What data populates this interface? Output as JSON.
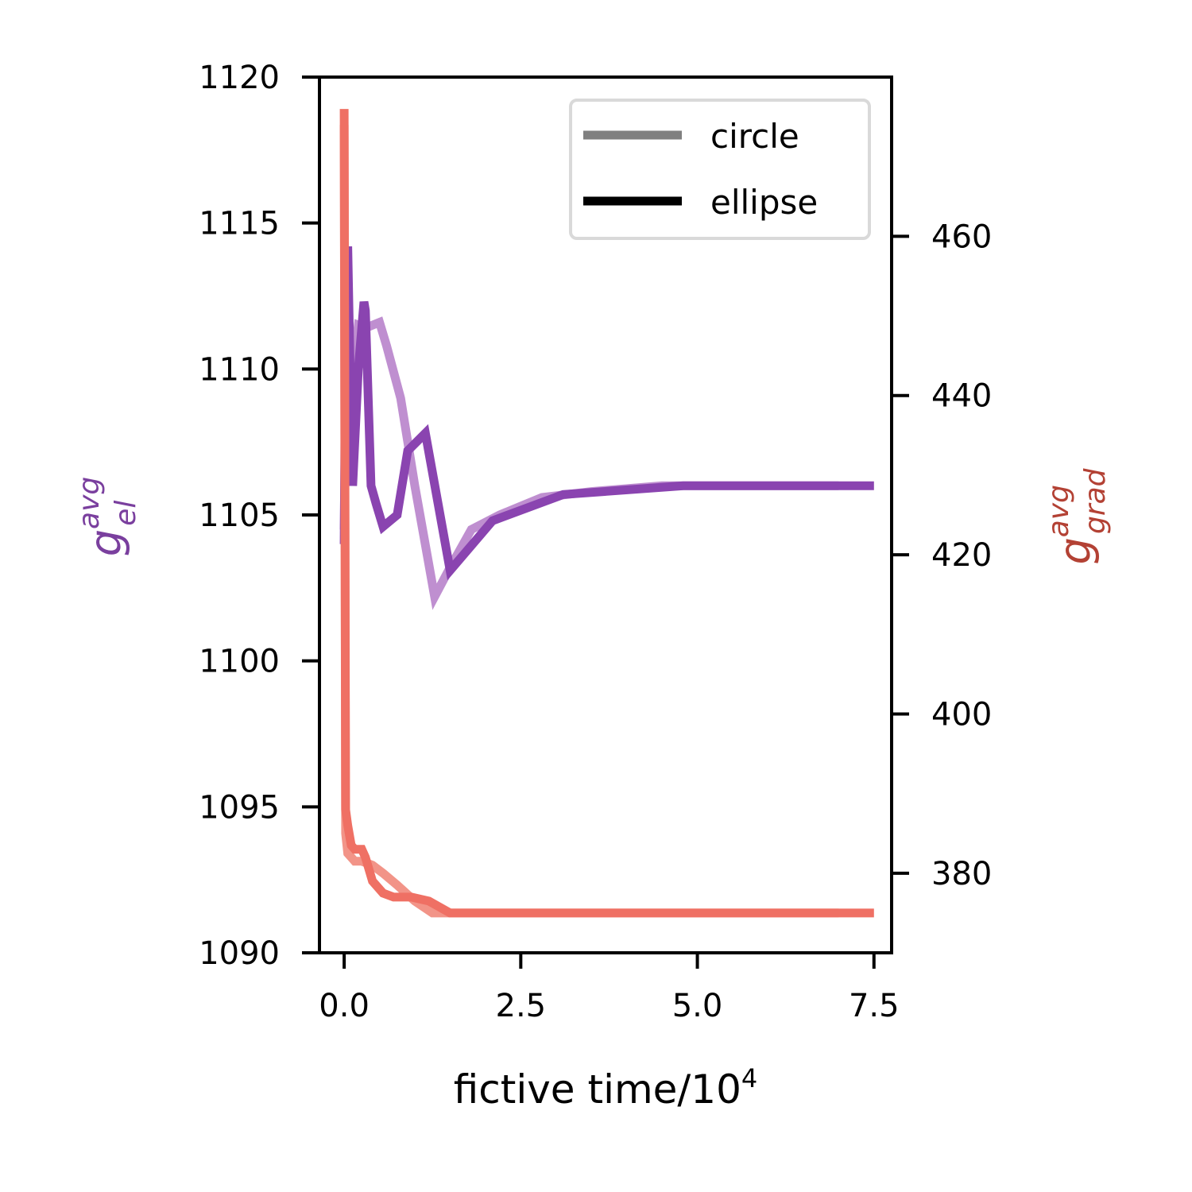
{
  "chart_data": {
    "type": "line",
    "xlabel": {
      "base": "fictive time/10",
      "exponent": "4"
    },
    "ylabel_left": {
      "main": "g",
      "sup": "avg",
      "sub": "el",
      "color": "#7a3f9e"
    },
    "ylabel_right": {
      "main": "g",
      "sup": "avg",
      "sub": "grad",
      "color": "#b34134"
    },
    "x_ticks": [
      "0.0",
      "2.5",
      "5.0",
      "7.5"
    ],
    "x_tick_values": [
      0,
      2.5,
      5.0,
      7.5
    ],
    "y_left_ticks": [
      "1090",
      "1095",
      "1100",
      "1105",
      "1110",
      "1115",
      "1120"
    ],
    "y_left_tick_values": [
      1090,
      1095,
      1100,
      1105,
      1110,
      1115,
      1120
    ],
    "y_right_ticks": [
      "380",
      "400",
      "420",
      "440",
      "460"
    ],
    "y_right_tick_values": [
      380,
      400,
      420,
      440,
      460
    ],
    "xlim": [
      -0.35,
      7.75
    ],
    "ylim_left": [
      1090,
      1120
    ],
    "ylim_right": [
      370,
      480
    ],
    "colors": {
      "el": "#8a44b0",
      "el_circle": "#bf8fd0",
      "grad": "#ef7064",
      "grad_circle": "#f29488",
      "legend_circle": "#808080",
      "legend_ellipse": "#000000"
    },
    "legend": {
      "position": "top-right",
      "entries": [
        "circle",
        "ellipse"
      ]
    },
    "series": [
      {
        "name": "g_el circle",
        "axis": "left",
        "style": "circle",
        "x": [
          0,
          0.02,
          0.05,
          0.08,
          0.1,
          0.15,
          0.2,
          0.3,
          0.4,
          0.5,
          0.6,
          0.8,
          1.0,
          1.28,
          1.5,
          1.8,
          2.2,
          2.8,
          3.5,
          4.5,
          5.5,
          7.0
        ],
        "y": [
          1104.5,
          1109.0,
          1112.8,
          1108.5,
          1106.5,
          1110.5,
          1111.5,
          1111.4,
          1111.5,
          1111.6,
          1110.8,
          1109.0,
          1106.0,
          1102.2,
          1103.2,
          1104.5,
          1105.0,
          1105.6,
          1105.8,
          1106.0,
          1106.0,
          1106.0
        ]
      },
      {
        "name": "g_el ellipse",
        "axis": "left",
        "style": "ellipse",
        "x": [
          0,
          0.02,
          0.05,
          0.08,
          0.12,
          0.2,
          0.28,
          0.3,
          0.38,
          0.45,
          0.55,
          0.75,
          0.9,
          1.15,
          1.5,
          2.1,
          3.1,
          4.8,
          7.5
        ],
        "y": [
          1104.0,
          1111.0,
          1114.2,
          1110.5,
          1106.0,
          1110.0,
          1112.3,
          1112.0,
          1106.0,
          1105.4,
          1104.6,
          1105.0,
          1107.2,
          1107.8,
          1103.1,
          1104.8,
          1105.7,
          1106.0,
          1106.0
        ]
      },
      {
        "name": "g_grad circle",
        "axis": "right",
        "style": "circle",
        "x": [
          0,
          0.02,
          0.05,
          0.1,
          0.15,
          0.25,
          0.4,
          0.55,
          0.75,
          1.0,
          1.25,
          1.5,
          2.0,
          3.0,
          5.0,
          7.0
        ],
        "y": [
          474,
          385.0,
          382.5,
          382.0,
          381.5,
          381.5,
          381.0,
          380.0,
          378.5,
          376.5,
          375.0,
          375.0,
          375.0,
          375.0,
          375.0,
          375.0
        ]
      },
      {
        "name": "g_grad ellipse",
        "axis": "right",
        "style": "ellipse",
        "x": [
          0,
          0.02,
          0.05,
          0.1,
          0.15,
          0.25,
          0.3,
          0.4,
          0.55,
          0.7,
          0.95,
          1.2,
          1.5,
          2.0,
          3.0,
          5.0,
          7.5
        ],
        "y": [
          476,
          388.0,
          386.0,
          383.5,
          383.0,
          383.0,
          382.0,
          379.0,
          377.5,
          377.0,
          377.0,
          376.5,
          375.0,
          375.0,
          375.0,
          375.0,
          375.0
        ]
      }
    ]
  }
}
